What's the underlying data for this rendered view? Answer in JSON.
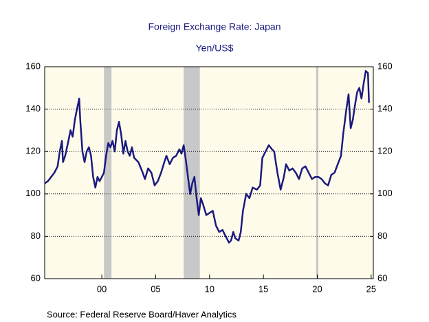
{
  "chart_data": {
    "type": "line",
    "title": "Foreign Exchange Rate: Japan",
    "subtitle": "Yen/US$",
    "source": "Source:  Federal Reserve Board/Haver Analytics",
    "color": "#1a1a80",
    "recessions": [
      [
        2000.2,
        2000.9
      ],
      [
        2007.6,
        2009.1
      ],
      [
        2019.9,
        2020.1
      ]
    ],
    "recession_color": "#c8c8c8",
    "grid": true,
    "xlim": [
      1994.7,
      2025.2
    ],
    "xticks": [
      {
        "value": 2000,
        "label": "00"
      },
      {
        "value": 2005,
        "label": "05"
      },
      {
        "value": 2010,
        "label": "10"
      },
      {
        "value": 2015,
        "label": "15"
      },
      {
        "value": 2020,
        "label": "20"
      },
      {
        "value": 2025,
        "label": "25"
      }
    ],
    "ylim": [
      60,
      160
    ],
    "yticks": [
      60,
      80,
      100,
      120,
      140,
      160
    ],
    "y2lim": [
      60,
      160
    ],
    "y2ticks": [
      60,
      80,
      100,
      120,
      140,
      160
    ],
    "x": [
      1994.7,
      1995.0,
      1995.3,
      1995.6,
      1995.9,
      1996.1,
      1996.3,
      1996.4,
      1996.6,
      1996.9,
      1997.1,
      1997.3,
      1997.5,
      1997.7,
      1997.9,
      1998.0,
      1998.2,
      1998.4,
      1998.6,
      1998.8,
      1999.0,
      1999.2,
      1999.4,
      1999.6,
      1999.8,
      2000.0,
      2000.2,
      2000.4,
      2000.6,
      2000.8,
      2001.0,
      2001.2,
      2001.4,
      2001.6,
      2001.8,
      2002.0,
      2002.2,
      2002.4,
      2002.6,
      2002.8,
      2003.0,
      2003.4,
      2003.8,
      2004.0,
      2004.3,
      2004.6,
      2004.9,
      2005.2,
      2005.5,
      2005.8,
      2006.0,
      2006.3,
      2006.6,
      2006.9,
      2007.2,
      2007.4,
      2007.6,
      2007.8,
      2008.0,
      2008.2,
      2008.4,
      2008.6,
      2008.8,
      2009.0,
      2009.2,
      2009.4,
      2009.7,
      2010.0,
      2010.3,
      2010.6,
      2010.9,
      2011.2,
      2011.5,
      2011.8,
      2012.0,
      2012.2,
      2012.4,
      2012.7,
      2012.9,
      2013.1,
      2013.4,
      2013.7,
      2014.0,
      2014.4,
      2014.7,
      2014.9,
      2015.2,
      2015.5,
      2015.8,
      2016.0,
      2016.3,
      2016.6,
      2016.9,
      2017.1,
      2017.4,
      2017.7,
      2018.0,
      2018.3,
      2018.6,
      2018.9,
      2019.2,
      2019.5,
      2019.8,
      2020.1,
      2020.4,
      2020.7,
      2021.0,
      2021.3,
      2021.6,
      2021.9,
      2022.2,
      2022.4,
      2022.7,
      2022.9,
      2023.1,
      2023.3,
      2023.5,
      2023.7,
      2023.9,
      2024.1,
      2024.3,
      2024.5,
      2024.7,
      2024.8
    ],
    "values": [
      105,
      106,
      108,
      110,
      113,
      120,
      125,
      115,
      118,
      125,
      130,
      127,
      135,
      140,
      145,
      135,
      120,
      115,
      120,
      122,
      118,
      108,
      103,
      108,
      106,
      108,
      110,
      118,
      124,
      122,
      125,
      120,
      130,
      134,
      128,
      119,
      125,
      120,
      118,
      122,
      117,
      115,
      110,
      107,
      112,
      110,
      104,
      106,
      110,
      115,
      118,
      114,
      117,
      118,
      121,
      119,
      123,
      116,
      108,
      100,
      105,
      108,
      98,
      90,
      98,
      95,
      90,
      91,
      92,
      85,
      82,
      83,
      80,
      77,
      78,
      82,
      79,
      78,
      82,
      92,
      100,
      98,
      103,
      102,
      104,
      117,
      120,
      123,
      121,
      120,
      110,
      102,
      108,
      114,
      111,
      112,
      110,
      107,
      112,
      113,
      110,
      107,
      108,
      108,
      107,
      105,
      104,
      109,
      110,
      114,
      118,
      128,
      140,
      147,
      131,
      135,
      142,
      148,
      150,
      145,
      152,
      158,
      157,
      143
    ]
  }
}
